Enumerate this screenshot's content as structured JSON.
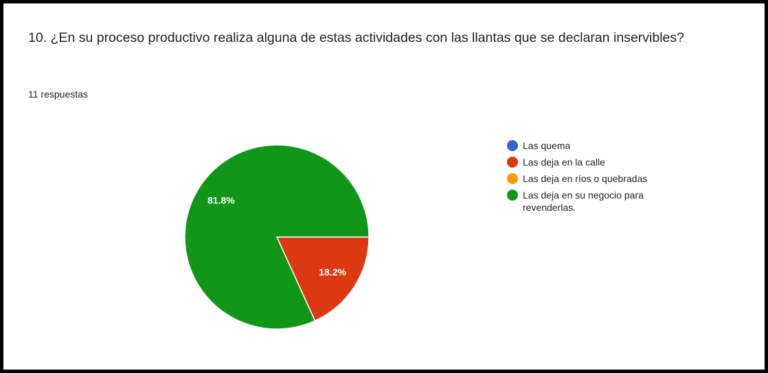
{
  "chart_data": {
    "type": "pie",
    "title": "10. ¿En su proceso productivo realiza alguna de estas actividades con las llantas que se declaran inservibles?",
    "subtitle": "11 respuestas",
    "categories": [
      "Las quema",
      "Las deja en la calle",
      "Las deja en ríos o quebradas",
      "Las deja en su negocio para revenderlas."
    ],
    "values": [
      0,
      18.2,
      0,
      81.8
    ],
    "value_labels": [
      null,
      "18.2%",
      null,
      "81.8%"
    ],
    "colors": [
      "#3366cc",
      "#dc3912",
      "#ff9900",
      "#109618"
    ],
    "legend": "right"
  }
}
